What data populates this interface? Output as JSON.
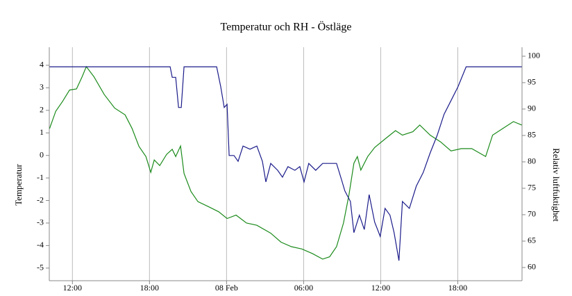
{
  "chart_data": {
    "type": "line",
    "title": "Temperatur och RH - Östläge",
    "ylabel": "Temperatur",
    "y2label": "Relativ luftfuktighet",
    "xlim": [
      10.2,
      47.0
    ],
    "xticks": [
      {
        "value": 12,
        "label": "12:00"
      },
      {
        "value": 18,
        "label": "18:00"
      },
      {
        "value": 24,
        "label": "08 Feb"
      },
      {
        "value": 30,
        "label": "06:00"
      },
      {
        "value": 36,
        "label": "12:00"
      },
      {
        "value": 42,
        "label": "18:00"
      }
    ],
    "ylim": [
      -5.56,
      4.8
    ],
    "yticks": [
      -5,
      -4,
      -3,
      -2,
      -1,
      0,
      1,
      2,
      3,
      4
    ],
    "y2lim": [
      57.5,
      101.7
    ],
    "y2ticks": [
      60,
      65,
      70,
      75,
      80,
      85,
      90,
      95,
      100
    ],
    "grid": true,
    "series": [
      {
        "color": "#1a8a1a",
        "axis": "y",
        "x": [
          10.22,
          10.7,
          11.24,
          11.78,
          12.32,
          12.76,
          13.08,
          13.67,
          14.48,
          15.29,
          16.1,
          16.64,
          17.18,
          17.72,
          18.1,
          18.37,
          18.8,
          19.34,
          19.77,
          20.04,
          20.42,
          20.69,
          21.23,
          21.77,
          22.58,
          23.39,
          24.04,
          24.74,
          25.55,
          26.36,
          27.44,
          28.24,
          29.05,
          29.86,
          30.67,
          31.48,
          32.02,
          32.56,
          33.1,
          33.53,
          33.91,
          34.18,
          34.45,
          34.99,
          35.53,
          36.34,
          37.15,
          37.69,
          38.5,
          39.04,
          39.85,
          40.66,
          41.47,
          42.28,
          43.09,
          44.17,
          44.71,
          45.52,
          46.33,
          46.98
        ],
        "values": [
          1.19,
          1.96,
          2.4,
          2.9,
          2.95,
          3.5,
          3.94,
          3.5,
          2.7,
          2.1,
          1.8,
          1.2,
          0.4,
          -0.05,
          -0.75,
          -0.2,
          -0.45,
          0.05,
          0.27,
          -0.05,
          0.42,
          -0.8,
          -1.6,
          -2.05,
          -2.27,
          -2.5,
          -2.8,
          -2.65,
          -3.0,
          -3.1,
          -3.45,
          -3.85,
          -4.05,
          -4.15,
          -4.35,
          -4.6,
          -4.5,
          -4.05,
          -3.0,
          -1.75,
          -0.35,
          -0.05,
          -0.65,
          -0.05,
          0.35,
          0.73,
          1.1,
          0.9,
          1.05,
          1.35,
          0.9,
          0.6,
          0.2,
          0.3,
          0.3,
          -0.05,
          0.9,
          1.2,
          1.5,
          1.35
        ]
      },
      {
        "color": "#1a1a8a",
        "axis": "y2",
        "x": [
          10.22,
          19.61,
          19.77,
          20.04,
          20.26,
          20.47,
          20.69,
          23.23,
          23.55,
          23.82,
          24.04,
          24.2,
          24.58,
          24.9,
          25.28,
          25.82,
          26.36,
          26.79,
          27.06,
          27.44,
          27.98,
          28.35,
          28.78,
          29.32,
          29.7,
          30.03,
          30.4,
          30.94,
          31.48,
          32.02,
          32.56,
          32.94,
          33.21,
          33.64,
          33.91,
          34.34,
          34.72,
          35.1,
          35.53,
          35.96,
          36.34,
          36.72,
          37.04,
          37.42,
          37.69,
          38.23,
          38.77,
          39.31,
          39.85,
          40.39,
          40.93,
          41.47,
          42.01,
          42.65,
          46.98
        ],
        "values": [
          98,
          98,
          96,
          96,
          90.3,
          90.3,
          98,
          98,
          94.2,
          90.3,
          90.9,
          81.2,
          81.2,
          80.1,
          83,
          82.4,
          83,
          80.1,
          76.2,
          79.7,
          78.4,
          77.1,
          79.1,
          78.4,
          79.1,
          76.2,
          79.7,
          78.4,
          79.7,
          79.7,
          79.7,
          76.7,
          74.5,
          72.5,
          66.6,
          69.9,
          67.2,
          73.8,
          68.6,
          65.9,
          71.2,
          69.9,
          66.6,
          61.3,
          72.5,
          71.2,
          75.4,
          78,
          81.7,
          85,
          89,
          91.6,
          94.2,
          98,
          98
        ]
      }
    ]
  }
}
